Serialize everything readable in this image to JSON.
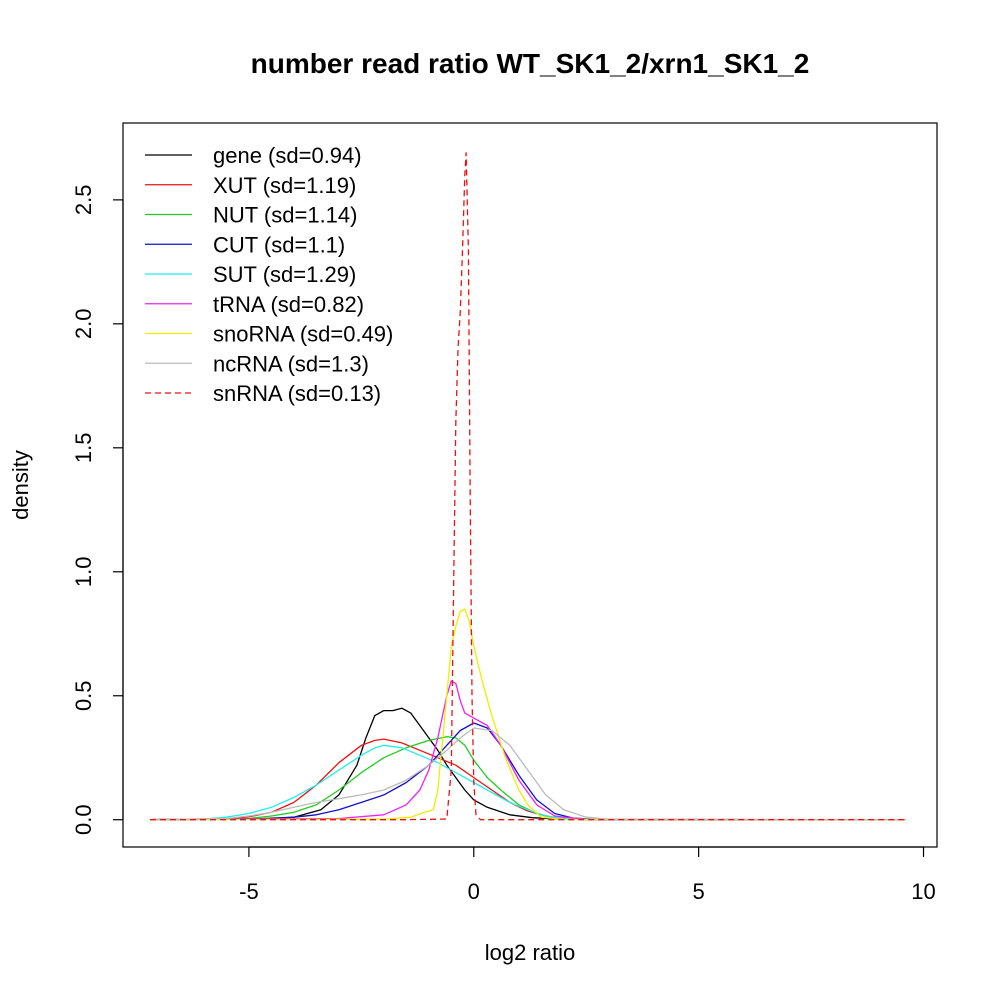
{
  "chart_data": {
    "type": "line",
    "title": "number read ratio WT_SK1_2/xrn1_SK1_2",
    "xlabel": "log2 ratio",
    "ylabel": "density",
    "xlim": [
      -7.8,
      10.3
    ],
    "ylim": [
      -0.11,
      2.81
    ],
    "xticks": [
      -5,
      0,
      5,
      10
    ],
    "xtick_labels": [
      "-5",
      "0",
      "5",
      "10"
    ],
    "yticks": [
      0.0,
      0.5,
      1.0,
      1.5,
      2.0,
      2.5
    ],
    "ytick_labels": [
      "0.0",
      "0.5",
      "1.0",
      "1.5",
      "2.0",
      "2.5"
    ],
    "legend_position": "top-left",
    "grid": false,
    "series": [
      {
        "name": "gene (sd=0.94)",
        "color": "#000000",
        "dash": false,
        "x": [
          -7.2,
          -5,
          -4,
          -3.4,
          -3,
          -2.6,
          -2.4,
          -2.2,
          -2,
          -1.8,
          -1.6,
          -1.4,
          -1.2,
          -1,
          -0.8,
          -0.6,
          -0.4,
          -0.2,
          0,
          0.3,
          0.8,
          1.3,
          2,
          3,
          9.6
        ],
        "y": [
          0,
          0.002,
          0.01,
          0.04,
          0.1,
          0.22,
          0.33,
          0.42,
          0.44,
          0.44,
          0.45,
          0.43,
          0.38,
          0.33,
          0.28,
          0.22,
          0.17,
          0.12,
          0.08,
          0.05,
          0.02,
          0.008,
          0.002,
          0,
          0
        ]
      },
      {
        "name": "XUT (sd=1.19)",
        "color": "#ee1111",
        "dash": false,
        "x": [
          -7.2,
          -5.5,
          -5,
          -4.5,
          -4,
          -3.5,
          -3,
          -2.5,
          -2.2,
          -2,
          -1.6,
          -1.2,
          -0.8,
          -0.4,
          0,
          0.4,
          0.8,
          1.2,
          1.6,
          2,
          3,
          9.6
        ],
        "y": [
          0,
          0.004,
          0.012,
          0.03,
          0.07,
          0.14,
          0.23,
          0.3,
          0.32,
          0.325,
          0.31,
          0.28,
          0.25,
          0.22,
          0.17,
          0.12,
          0.07,
          0.035,
          0.015,
          0.005,
          0.001,
          0
        ]
      },
      {
        "name": "NUT (sd=1.14)",
        "color": "#22cc22",
        "dash": false,
        "x": [
          -7.2,
          -5,
          -4.5,
          -4,
          -3.5,
          -3,
          -2.5,
          -2,
          -1.5,
          -1,
          -0.6,
          -0.4,
          -0.2,
          0,
          0.3,
          0.6,
          1,
          1.4,
          1.8,
          2.5,
          9.6
        ],
        "y": [
          0,
          0.005,
          0.015,
          0.03,
          0.06,
          0.12,
          0.19,
          0.25,
          0.29,
          0.32,
          0.335,
          0.33,
          0.3,
          0.24,
          0.17,
          0.12,
          0.06,
          0.025,
          0.008,
          0.001,
          0
        ]
      },
      {
        "name": "CUT (sd=1.1)",
        "color": "#1111cc",
        "dash": false,
        "x": [
          -7.2,
          -4.5,
          -4,
          -3.5,
          -3,
          -2.5,
          -2,
          -1.5,
          -1,
          -0.6,
          -0.3,
          0,
          0.3,
          0.6,
          1,
          1.4,
          1.8,
          2.2,
          2.8,
          9.6
        ],
        "y": [
          0,
          0.004,
          0.01,
          0.02,
          0.04,
          0.07,
          0.1,
          0.15,
          0.22,
          0.3,
          0.36,
          0.39,
          0.37,
          0.3,
          0.18,
          0.08,
          0.025,
          0.007,
          0.001,
          0
        ]
      },
      {
        "name": "SUT (sd=1.29)",
        "color": "#22eeee",
        "dash": false,
        "x": [
          -7.2,
          -6,
          -5.5,
          -5,
          -4.5,
          -4,
          -3.5,
          -3,
          -2.5,
          -2.2,
          -2,
          -1.6,
          -1.2,
          -0.8,
          -0.4,
          0,
          0.4,
          0.8,
          1.2,
          1.6,
          2,
          3,
          9.6
        ],
        "y": [
          0,
          0.003,
          0.01,
          0.025,
          0.05,
          0.09,
          0.14,
          0.2,
          0.26,
          0.29,
          0.3,
          0.29,
          0.26,
          0.23,
          0.19,
          0.15,
          0.11,
          0.07,
          0.04,
          0.015,
          0.005,
          0.001,
          0
        ]
      },
      {
        "name": "tRNA (sd=0.82)",
        "color": "#ee22ee",
        "dash": false,
        "x": [
          -7.2,
          -3,
          -2,
          -1.5,
          -1.2,
          -1,
          -0.8,
          -0.6,
          -0.5,
          -0.4,
          -0.3,
          -0.2,
          0,
          0.3,
          0.6,
          1,
          1.4,
          1.8,
          2.5,
          9.6
        ],
        "y": [
          0,
          0.005,
          0.02,
          0.06,
          0.12,
          0.2,
          0.33,
          0.5,
          0.56,
          0.55,
          0.48,
          0.43,
          0.41,
          0.38,
          0.3,
          0.16,
          0.06,
          0.015,
          0.001,
          0
        ]
      },
      {
        "name": "snoRNA (sd=0.49)",
        "color": "#eeee00",
        "dash": false,
        "x": [
          -7.2,
          -2,
          -1.4,
          -1.1,
          -0.9,
          -0.8,
          -0.6,
          -0.5,
          -0.4,
          -0.3,
          -0.2,
          -0.1,
          0,
          0.2,
          0.4,
          0.7,
          1,
          1.2,
          1.5,
          2,
          9.6
        ],
        "y": [
          0,
          0.002,
          0.01,
          0.03,
          0.04,
          0.12,
          0.5,
          0.7,
          0.78,
          0.84,
          0.85,
          0.8,
          0.7,
          0.55,
          0.42,
          0.25,
          0.12,
          0.06,
          0.01,
          0.001,
          0
        ]
      },
      {
        "name": "ncRNA (sd=1.3)",
        "color": "#bbbbbb",
        "dash": false,
        "x": [
          -7.2,
          -5.5,
          -5,
          -4.5,
          -4,
          -3.5,
          -3,
          -2.5,
          -2,
          -1.5,
          -1,
          -0.6,
          -0.3,
          0,
          0.4,
          0.8,
          1.2,
          1.6,
          2,
          2.5,
          3,
          9.6
        ],
        "y": [
          0,
          0.005,
          0.015,
          0.03,
          0.05,
          0.07,
          0.085,
          0.1,
          0.12,
          0.16,
          0.22,
          0.28,
          0.33,
          0.37,
          0.36,
          0.3,
          0.2,
          0.1,
          0.04,
          0.01,
          0.002,
          0
        ]
      },
      {
        "name": "snRNA (sd=0.13)",
        "color": "#ee1111",
        "dash": true,
        "x": [
          -7.2,
          -1.5,
          -0.6,
          -0.5,
          -0.45,
          -0.4,
          -0.35,
          -0.3,
          -0.25,
          -0.2,
          -0.17,
          -0.12,
          -0.08,
          -0.04,
          0,
          0.05,
          0.15,
          9.6
        ],
        "y": [
          0,
          0,
          0.003,
          0.2,
          0.9,
          1.6,
          1.9,
          2.05,
          2.3,
          2.6,
          2.69,
          2.3,
          1.3,
          0.5,
          0.15,
          0.02,
          0,
          0
        ]
      }
    ]
  }
}
